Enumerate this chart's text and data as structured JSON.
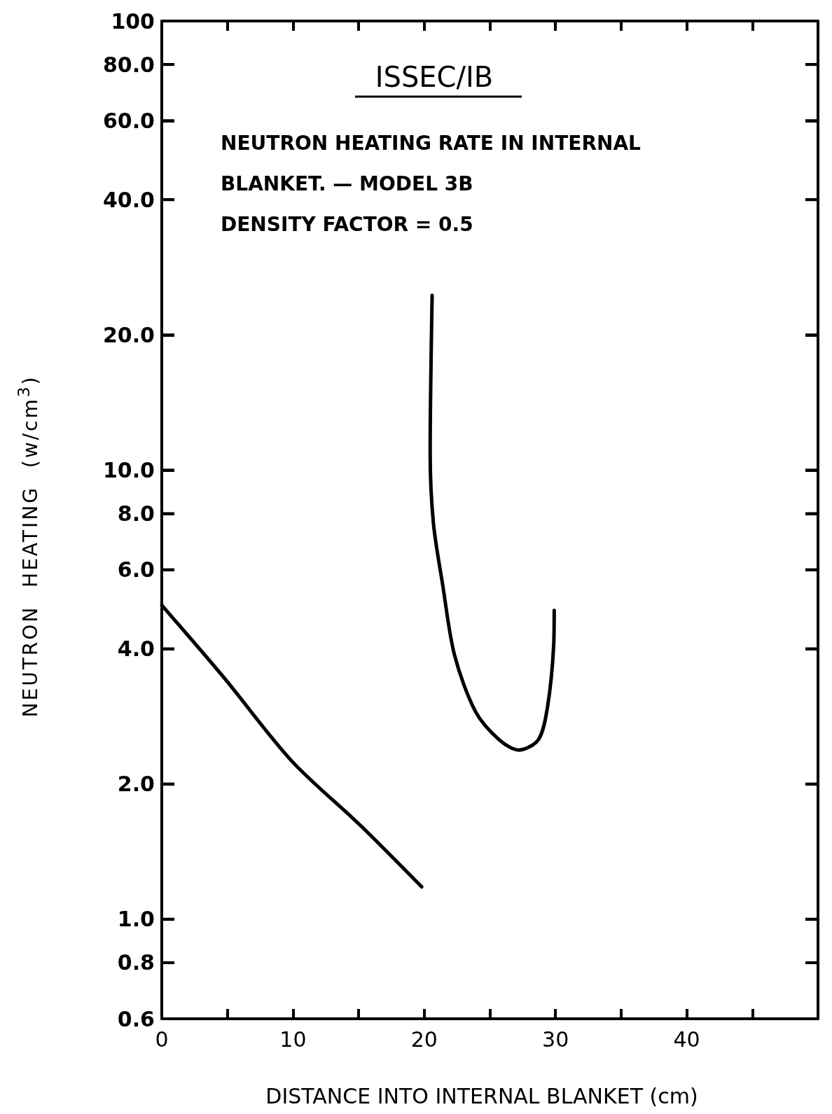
{
  "chart_data": {
    "type": "line",
    "title": "ISSEC/IB",
    "subtitle": "NEUTRON HEATING RATE IN INTERNAL\nBLANKET. — MODEL 3B\nDENSITY FACTOR = 0.5",
    "xlabel": "DISTANCE INTO INTERNAL BLANKET (cm)",
    "ylabel": "NEUTRON HEATING (w/cm$^{3}$)",
    "series": [
      {
        "color": "#000000",
        "x": [
          0,
          4.7,
          9.9,
          15.2,
          19.8
        ],
        "values": [
          5.0,
          3.46,
          2.25,
          1.61,
          1.18
        ]
      },
      {
        "color": "#000000",
        "x": [
          20.6,
          20.45,
          20.7,
          21.4,
          22.3,
          23.9,
          25.7,
          27.2,
          28.7,
          29.4,
          29.86,
          29.9
        ],
        "values": [
          24.5,
          10.9,
          7.6,
          5.56,
          3.88,
          2.9,
          2.51,
          2.38,
          2.51,
          2.98,
          4.07,
          4.87
        ]
      }
    ],
    "log": "y",
    "xlim": [
      0,
      50
    ],
    "ylim": [
      0.6,
      100
    ],
    "xticks": [
      0,
      {
        "value": 5,
        "label": null
      },
      10,
      {
        "value": 15,
        "label": null
      },
      20,
      {
        "value": 25,
        "label": null
      },
      30,
      {
        "value": 35,
        "label": null
      },
      40,
      {
        "value": 45,
        "label": null
      }
    ],
    "yticks": [
      {
        "value": 0.6,
        "label": "0.6"
      },
      {
        "value": 0.8,
        "label": "0.8"
      },
      {
        "value": 1,
        "label": "1.0"
      },
      {
        "value": 2,
        "label": "2.0"
      },
      {
        "value": 4,
        "label": "4.0"
      },
      {
        "value": 6,
        "label": "6.0"
      },
      {
        "value": 8,
        "label": "8.0"
      },
      {
        "value": 10,
        "label": "10.0"
      },
      {
        "value": 20,
        "label": "20.0"
      },
      {
        "value": 40,
        "label": "40.0"
      },
      {
        "value": 60,
        "label": "60.0"
      },
      {
        "value": 80,
        "label": "80.0"
      },
      100
    ],
    "grid": false,
    "marker": "none",
    "line_style": "solid"
  }
}
